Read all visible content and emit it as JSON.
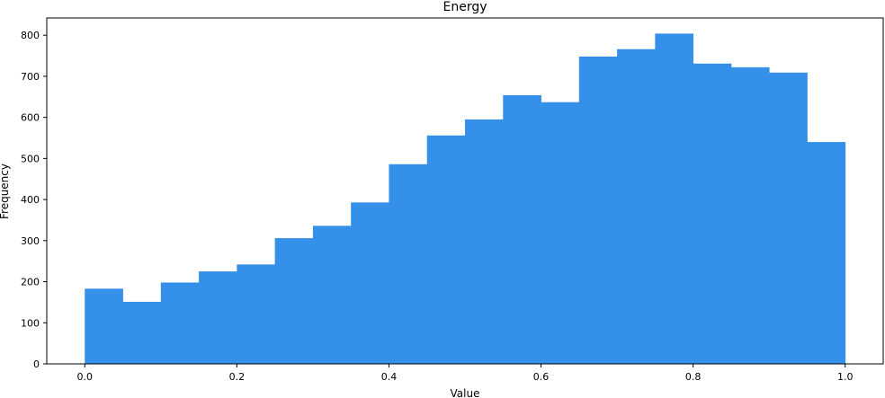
{
  "chart_data": {
    "type": "bar",
    "title": "Energy",
    "xlabel": "Value",
    "ylabel": "Frequency",
    "bin_edges": [
      0.0,
      0.05,
      0.1,
      0.15,
      0.2,
      0.25,
      0.3,
      0.35,
      0.4,
      0.45,
      0.5,
      0.55,
      0.6,
      0.65,
      0.7,
      0.75,
      0.8,
      0.85,
      0.9,
      0.95,
      1.0
    ],
    "values": [
      183,
      151,
      198,
      225,
      242,
      306,
      336,
      393,
      486,
      556,
      595,
      654,
      637,
      748,
      766,
      804,
      731,
      722,
      709,
      540
    ],
    "xlim": [
      -0.05,
      1.05
    ],
    "ylim": [
      0,
      842
    ],
    "xticks": [
      "0.0",
      "0.2",
      "0.4",
      "0.6",
      "0.8",
      "1.0"
    ],
    "yticks": [
      "0",
      "100",
      "200",
      "300",
      "400",
      "500",
      "600",
      "700",
      "800"
    ],
    "grid": false,
    "bar_color": "#3590e9"
  }
}
